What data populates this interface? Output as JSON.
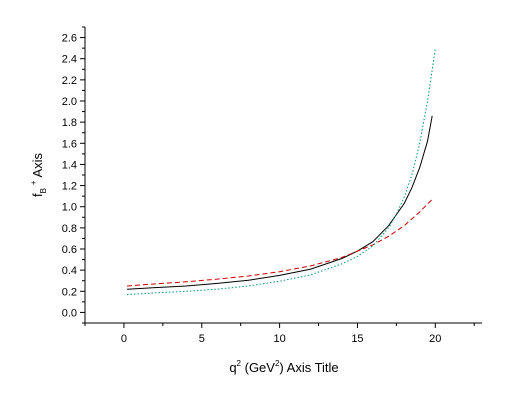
{
  "chart_data": {
    "type": "line",
    "xlabel": {
      "pre": "q",
      "sup1": "2",
      "mid": " (GeV",
      "sup2": "2",
      "post": ") Axis Title"
    },
    "ylabel": {
      "main": "f",
      "sub": "B",
      "sup": "+",
      "post": " Axis"
    },
    "xlim": [
      -2.5,
      23
    ],
    "ylim": [
      -0.1,
      2.7
    ],
    "x_ticks": [
      0,
      5,
      10,
      15,
      20
    ],
    "x_tick_labels": [
      "0",
      "5",
      "10",
      "15",
      "20"
    ],
    "y_ticks": [
      0.0,
      0.2,
      0.4,
      0.6,
      0.8,
      1.0,
      1.2,
      1.4,
      1.6,
      1.8,
      2.0,
      2.2,
      2.4,
      2.6
    ],
    "y_tick_labels": [
      "0.0",
      "0.2",
      "0.4",
      "0.6",
      "0.8",
      "1.0",
      "1.2",
      "1.4",
      "1.6",
      "1.8",
      "2.0",
      "2.2",
      "2.4",
      "2.6"
    ],
    "grid": false,
    "series": [
      {
        "color": "#000000",
        "style": "solid",
        "x": [
          0.2,
          2,
          4,
          6,
          8,
          10,
          12,
          14,
          15,
          16,
          17,
          18,
          18.5,
          19,
          19.5,
          19.8
        ],
        "y": [
          0.22,
          0.235,
          0.25,
          0.275,
          0.305,
          0.35,
          0.41,
          0.51,
          0.58,
          0.67,
          0.82,
          1.03,
          1.18,
          1.37,
          1.62,
          1.86
        ]
      },
      {
        "color": "#cc0000",
        "style": "dashed",
        "x": [
          0.2,
          2,
          4,
          6,
          8,
          10,
          12,
          14,
          15,
          16,
          17,
          18,
          19,
          19.8
        ],
        "y": [
          0.25,
          0.27,
          0.29,
          0.315,
          0.345,
          0.385,
          0.44,
          0.52,
          0.58,
          0.64,
          0.72,
          0.82,
          0.95,
          1.07
        ]
      },
      {
        "color": "#009977",
        "style": "dotted",
        "x": [
          0.2,
          2,
          4,
          6,
          8,
          10,
          12,
          14,
          15,
          16,
          17,
          17.5,
          18,
          18.5,
          19,
          19.5,
          20
        ],
        "y": [
          0.17,
          0.185,
          0.2,
          0.22,
          0.25,
          0.295,
          0.355,
          0.46,
          0.53,
          0.63,
          0.8,
          0.93,
          1.09,
          1.3,
          1.6,
          2.0,
          2.49
        ]
      }
    ]
  }
}
